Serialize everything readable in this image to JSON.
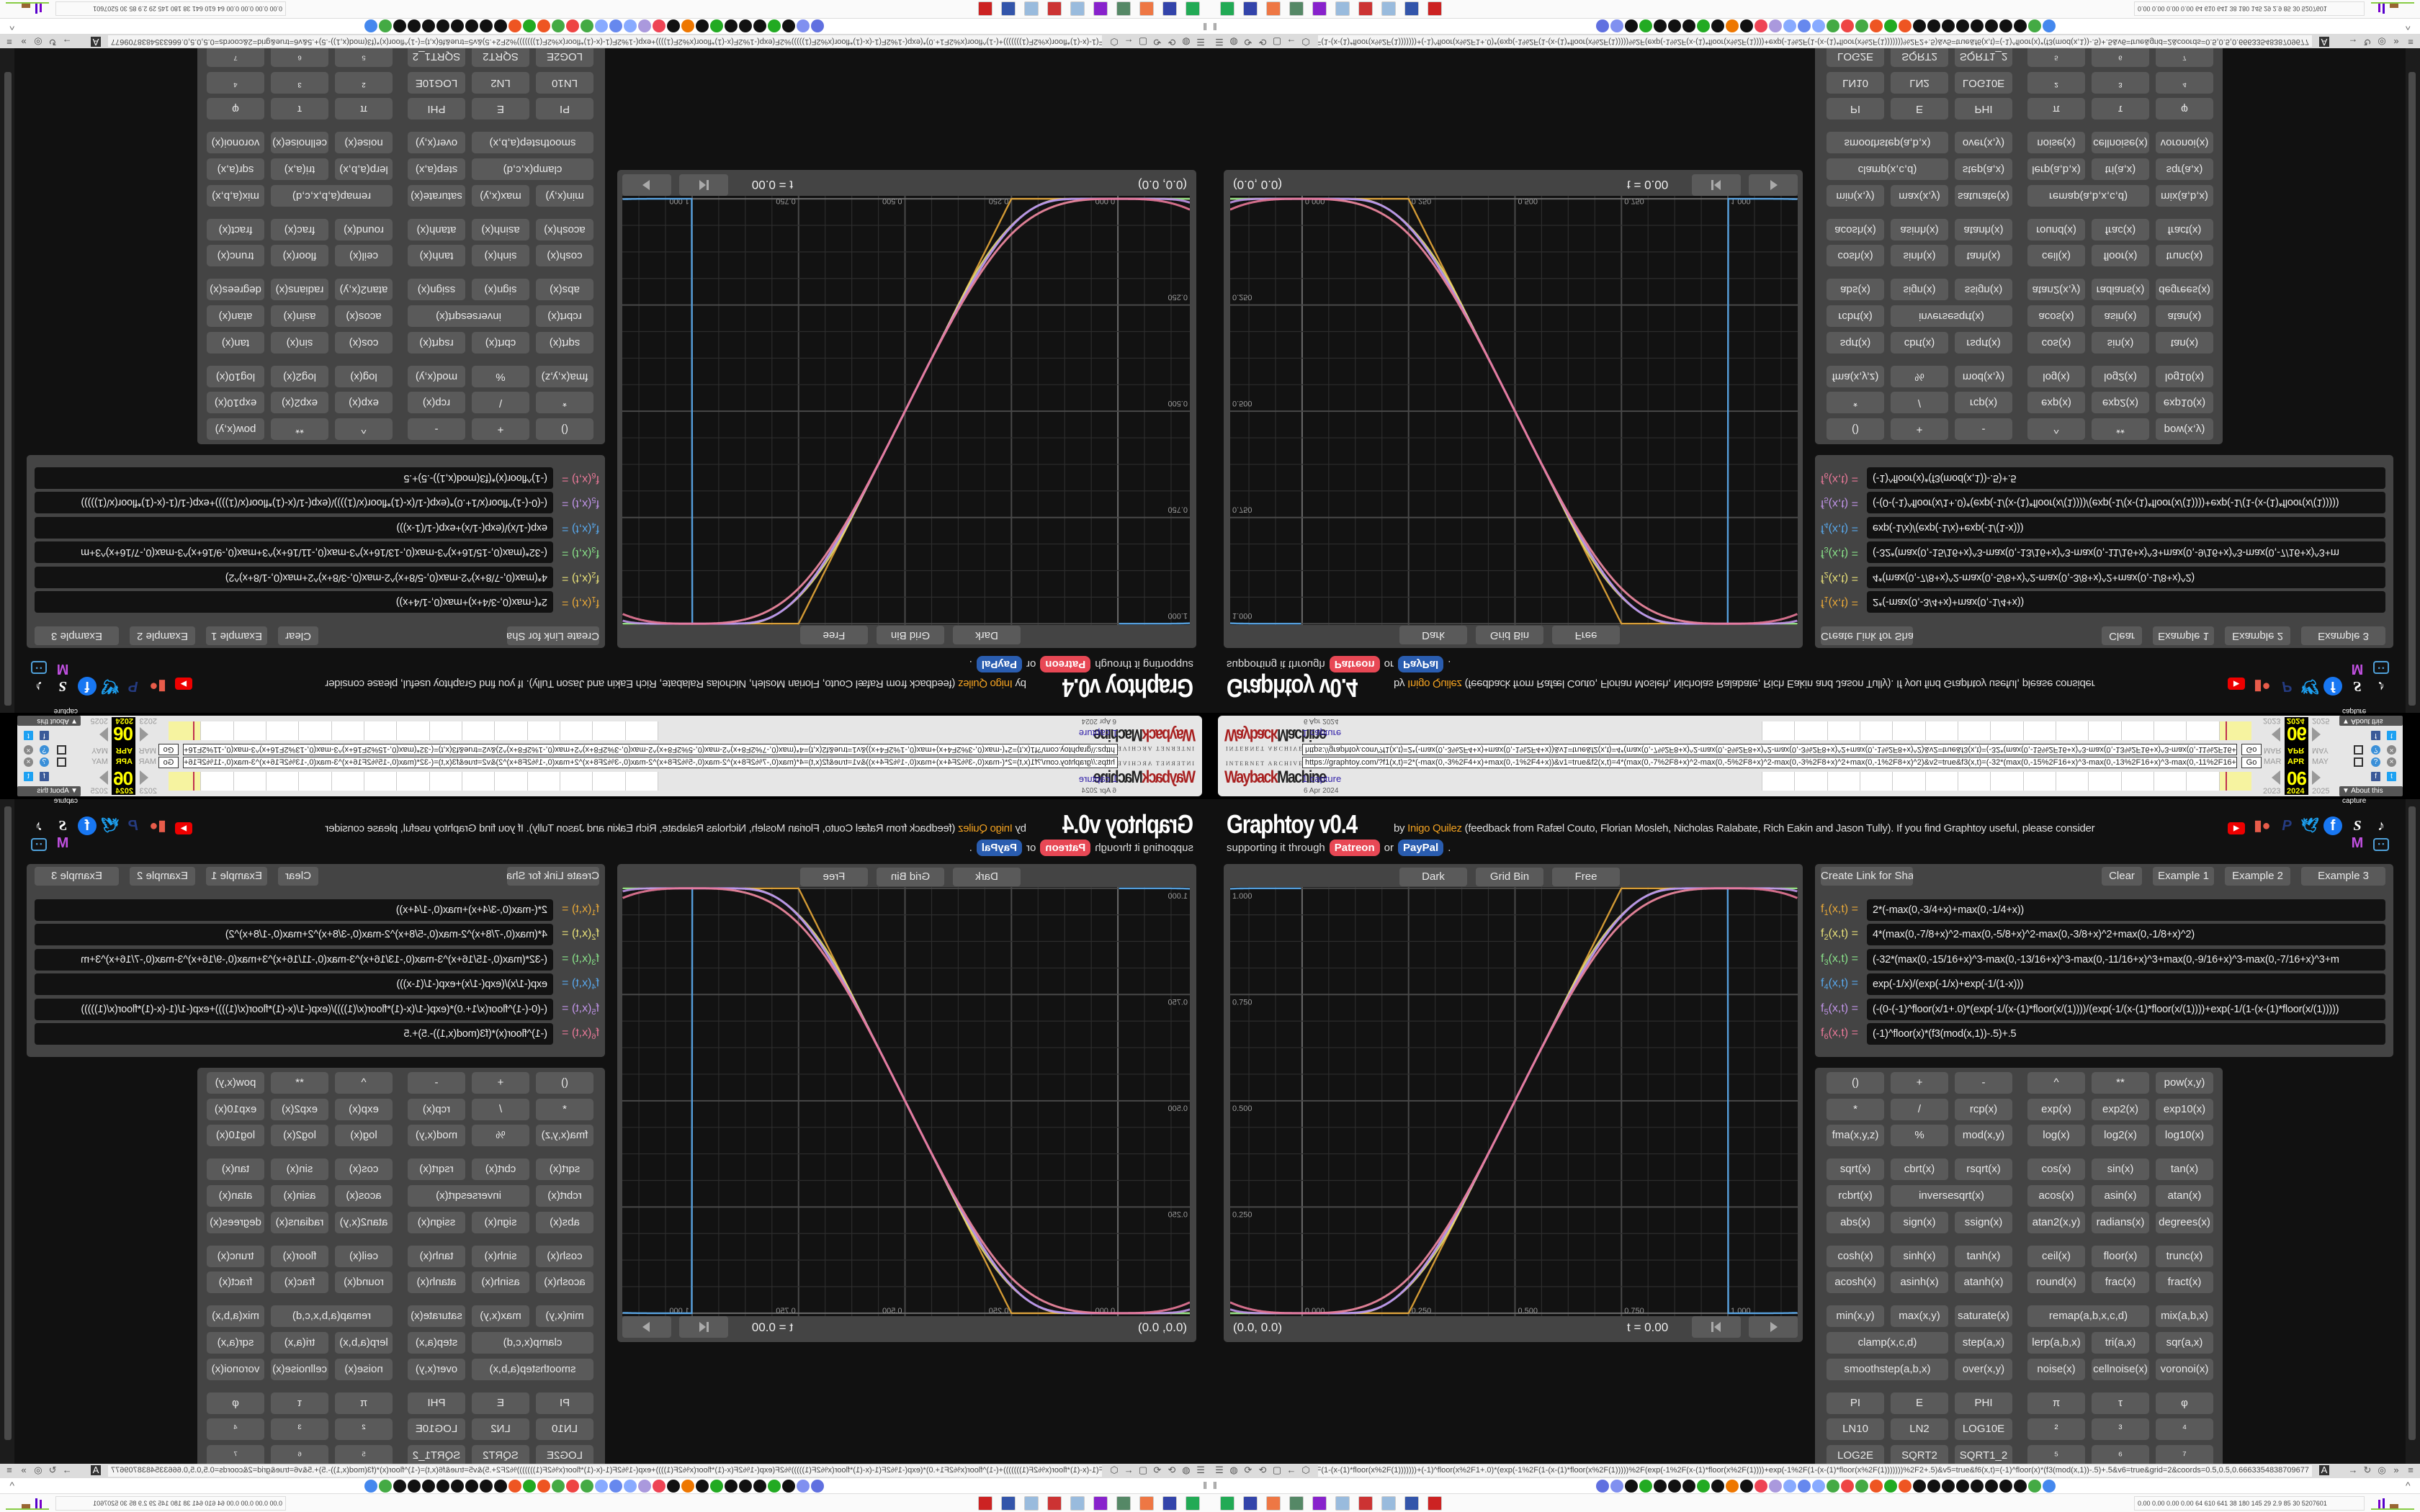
{
  "wayback": {
    "brand_top": "INTERNET ARCHIVE",
    "brand_logo_a": "Wayback",
    "brand_logo_b": "Machine",
    "url": "https://graphtoy.com/?f1(x,t)=2*(-max(0,-3%2F4+x)+max(0,-1%2F4+x))&v1=true&f2(x,t)=4*(max(0,-7%2F8+x)^2-max(0,-5%2F8+x)^2-max(0,-3%2F8+x)^2+max(0,-1%2F8+x)^2)&v2=true&f3(x,t)=(-32*(max(0,-15%2F16+x)^3-max(0,-13%2F16+x)^3-max(0,-11%2F16+x)^3+max(0,-9%2F16+x)^3",
    "go_label": "Go",
    "captures": "1 capture",
    "capture_date": "6 Apr 2024",
    "months": [
      "MAR",
      "APR",
      "MAY"
    ],
    "day": "06",
    "years": [
      "2023",
      "2024",
      "2025"
    ],
    "about_label": "▼ About this capture"
  },
  "header": {
    "title": "Graphtoy v0.4",
    "by": "by",
    "author": "Inigo Quilez",
    "credits": "(feedback from Rafæl Couto, Florian Mosleh, Nicholas Ralabate, Rich Eakin and Jason Tully). If you find Graphtoy useful, please consider",
    "support_text": "supporting it through",
    "patreon": "Patreon",
    "or": "or",
    "paypal": "PayPal",
    "period": ".",
    "social_icons": [
      "youtube-icon",
      "patreon-icon",
      "paypal-icon",
      "twitter-icon",
      "facebook-icon",
      "shadertoy-icon",
      "tiktok-icon",
      "mastodon-icon",
      "bilibili-icon"
    ]
  },
  "graph": {
    "buttons": [
      "Dark",
      "Grid Bin",
      "Free"
    ],
    "x_labels": [
      "0.000",
      "0.250",
      "0.500",
      "0.750",
      "1.000"
    ],
    "y_labels": [
      "1.000",
      "0.750",
      "0.500",
      "0.250"
    ],
    "x_range": [
      -0.169,
      1.164
    ],
    "y_range": [
      -0.007,
      1.003
    ],
    "coords": "(0.0, 0.0)",
    "time": "t = 0.00",
    "reset_icon": "skip-back-icon",
    "play_icon": "play-icon"
  },
  "functions_panel": {
    "share_label": "Create Link for Sharing",
    "clear_label": "Clear",
    "examples": [
      "Example 1",
      "Example 2",
      "Example 3"
    ],
    "functions": [
      {
        "name": "f",
        "index": "1",
        "args": "(x,t) =",
        "color": "#e8a838",
        "expr": "2*(-max(0,-3/4+x)+max(0,-1/4+x))"
      },
      {
        "name": "f",
        "index": "2",
        "args": "(x,t) =",
        "color": "#e8e078",
        "expr": "4*(max(0,-7/8+x)^2-max(0,-5/8+x)^2-max(0,-3/8+x)^2+max(0,-1/8+x)^2)"
      },
      {
        "name": "f",
        "index": "3",
        "args": "(x,t) =",
        "color": "#88e088",
        "expr": "(-32*(max(0,-15/16+x)^3-max(0,-13/16+x)^3-max(0,-11/16+x)^3+max(0,-9/16+x)^3-max(0,-7/16+x)^3+m"
      },
      {
        "name": "f",
        "index": "4",
        "args": "(x,t) =",
        "color": "#58a8ec",
        "expr": "exp(-1/x)/(exp(-1/x)+exp(-1/(1-x)))"
      },
      {
        "name": "f",
        "index": "5",
        "args": "(x,t) =",
        "color": "#c094e8",
        "expr": "(-(0-(-1)^floor(x/1+.0)*(exp(-1/(x-(1)*floor(x/(1))))/(exp(-1/(x-(1)*floor(x/(1))))+exp(-1/(1-(x-(1)*floor(x/(1)))))"
      },
      {
        "name": "f",
        "index": "6",
        "args": "(x,t) =",
        "color": "#e87898",
        "expr": "(-1)^floor(x)*(f3(mod(x,1))-.5)+.5"
      }
    ]
  },
  "keypad": [
    [
      [
        {
          "l": "()"
        },
        {
          "l": "+"
        },
        {
          "l": "-"
        },
        {
          "l": "^"
        },
        {
          "l": "**"
        },
        {
          "l": "pow(x,y)"
        }
      ],
      [
        {
          "l": "*"
        },
        {
          "l": "/"
        },
        {
          "l": "rcp(x)"
        },
        {
          "l": "exp(x)"
        },
        {
          "l": "exp2(x)"
        },
        {
          "l": "exp10(x)"
        }
      ],
      [
        {
          "l": "fma(x,y,z)"
        },
        {
          "l": "%"
        },
        {
          "l": "mod(x,y)"
        },
        {
          "l": "log(x)"
        },
        {
          "l": "log2(x)"
        },
        {
          "l": "log10(x)"
        }
      ]
    ],
    [
      [
        {
          "l": "sqrt(x)"
        },
        {
          "l": "cbrt(x)"
        },
        {
          "l": "rsqrt(x)"
        },
        {
          "l": "cos(x)"
        },
        {
          "l": "sin(x)"
        },
        {
          "l": "tan(x)"
        }
      ],
      [
        {
          "l": "rcbrt(x)"
        },
        {
          "l": "inversesqrt(x)",
          "s": 2
        },
        {
          "l": "acos(x)"
        },
        {
          "l": "asin(x)"
        },
        {
          "l": "atan(x)"
        }
      ],
      [
        {
          "l": "abs(x)"
        },
        {
          "l": "sign(x)"
        },
        {
          "l": "ssign(x)"
        },
        {
          "l": "atan2(x,y)"
        },
        {
          "l": "radians(x)"
        },
        {
          "l": "degrees(x)"
        }
      ]
    ],
    [
      [
        {
          "l": "cosh(x)"
        },
        {
          "l": "sinh(x)"
        },
        {
          "l": "tanh(x)"
        },
        {
          "l": "ceil(x)"
        },
        {
          "l": "floor(x)"
        },
        {
          "l": "trunc(x)"
        }
      ],
      [
        {
          "l": "acosh(x)"
        },
        {
          "l": "asinh(x)"
        },
        {
          "l": "atanh(x)"
        },
        {
          "l": "round(x)"
        },
        {
          "l": "frac(x)"
        },
        {
          "l": "fract(x)"
        }
      ]
    ],
    [
      [
        {
          "l": "min(x,y)"
        },
        {
          "l": "max(x,y)"
        },
        {
          "l": "saturate(x)"
        },
        {
          "l": "remap(a,b,x,c,d)",
          "s": 2
        },
        {
          "l": "mix(a,b,x)"
        }
      ],
      [
        {
          "l": "clamp(x,c,d)",
          "s": 2
        },
        {
          "l": "step(a,x)"
        },
        {
          "l": "lerp(a,b,x)"
        },
        {
          "l": "tri(a,x)"
        },
        {
          "l": "sqr(a,x)"
        }
      ],
      [
        {
          "l": "smoothstep(a,b,x)",
          "s": 2
        },
        {
          "l": "over(x,y)"
        },
        {
          "l": "noise(x)"
        },
        {
          "l": "cellnoise(x)"
        },
        {
          "l": "voronoi(x)"
        }
      ]
    ],
    [
      [
        {
          "l": "PI"
        },
        {
          "l": "E"
        },
        {
          "l": "PHI"
        },
        {
          "l": "π"
        },
        {
          "l": "τ"
        },
        {
          "l": "φ"
        }
      ],
      [
        {
          "l": "LN10"
        },
        {
          "l": "LN2"
        },
        {
          "l": "LOG10E"
        },
        {
          "l": "²"
        },
        {
          "l": "³"
        },
        {
          "l": "⁴"
        }
      ],
      [
        {
          "l": "LOG2E"
        },
        {
          "l": "SQRT2"
        },
        {
          "l": "SQRT1_2"
        },
        {
          "l": "⁵"
        },
        {
          "l": "⁶"
        },
        {
          "l": "⁷"
        }
      ]
    ]
  ],
  "browser": {
    "address": "https://graphtoy.com/?...%2F(1))))+exp(-1%2F(1-(x-(1)*floor(x%2F(1)))))))+(-1)^floor(x%2F1+.0)*(exp(-1%2F(1-(x-(1)*floor(x%2F(1)))))%2F(exp(-1%2F(x-(1)*floor(x%2F(1))))+exp(-1%2F(1-(x-(1)*floor(x%2F(1)))))))%2F2+.5)&v5=true&f6(x,t)=(-1)^floor(x)*(f3(mod(x,1))-.5)+.5&v6=true&grid=2&coords=0.5,0.5,0.6663354838709677",
    "tray_text": "0.00 0.00 0.00 0.00  64  610  641  38  180  145  29  2.9  85  30  5207601"
  },
  "colors": {
    "page_bg": "#111111",
    "panel_bg": "#444444",
    "button_bg": "#5a5a5a",
    "patreon": "#e84855",
    "paypal": "#2a5db0",
    "author_link": "#f0a020"
  }
}
